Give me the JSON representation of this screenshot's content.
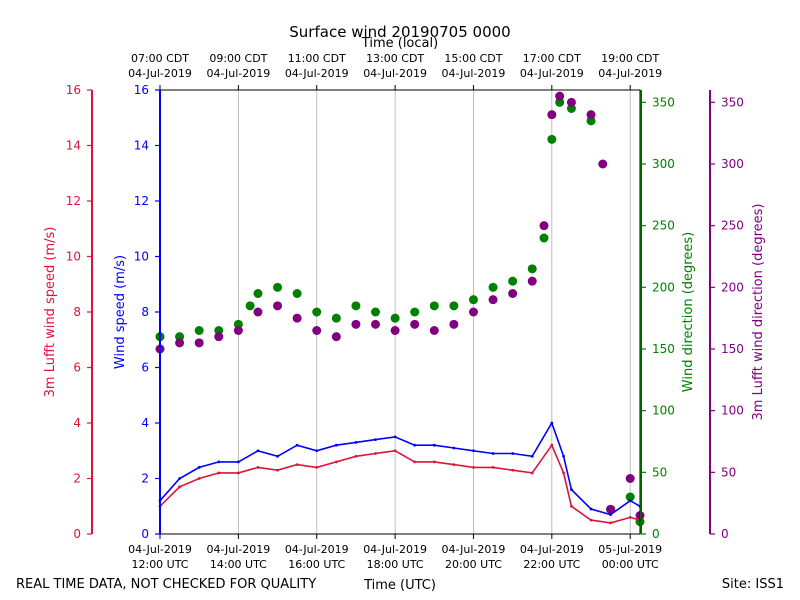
{
  "chart_data": {
    "type": "scatter+line",
    "title": "Surface wind 20190705 0000",
    "top_axis_label": "Time (local)",
    "bottom_axis_label": "Time (UTC)",
    "footer_left": "REAL TIME DATA, NOT CHECKED FOR QUALITY",
    "footer_right": "Site: ISS1",
    "x_range_hours_utc": [
      12,
      24.25
    ],
    "bottom_ticks": [
      {
        "hour": 12,
        "line1": "04-Jul-2019",
        "line2": "12:00 UTC"
      },
      {
        "hour": 14,
        "line1": "04-Jul-2019",
        "line2": "14:00 UTC"
      },
      {
        "hour": 16,
        "line1": "04-Jul-2019",
        "line2": "16:00 UTC"
      },
      {
        "hour": 18,
        "line1": "04-Jul-2019",
        "line2": "18:00 UTC"
      },
      {
        "hour": 20,
        "line1": "04-Jul-2019",
        "line2": "20:00 UTC"
      },
      {
        "hour": 22,
        "line1": "04-Jul-2019",
        "line2": "22:00 UTC"
      },
      {
        "hour": 24,
        "line1": "05-Jul-2019",
        "line2": "00:00 UTC"
      }
    ],
    "top_ticks": [
      {
        "hour": 12,
        "line1": "07:00 CDT",
        "line2": "04-Jul-2019"
      },
      {
        "hour": 14,
        "line1": "09:00 CDT",
        "line2": "04-Jul-2019"
      },
      {
        "hour": 16,
        "line1": "11:00 CDT",
        "line2": "04-Jul-2019"
      },
      {
        "hour": 18,
        "line1": "13:00 CDT",
        "line2": "04-Jul-2019"
      },
      {
        "hour": 20,
        "line1": "15:00 CDT",
        "line2": "04-Jul-2019"
      },
      {
        "hour": 22,
        "line1": "17:00 CDT",
        "line2": "04-Jul-2019"
      },
      {
        "hour": 24,
        "line1": "19:00 CDT",
        "line2": "04-Jul-2019"
      }
    ],
    "axes": {
      "lufft_speed": {
        "label": "3m Lufft wind speed (m/s)",
        "range": [
          0,
          16
        ],
        "ticks": [
          "0",
          "2",
          "4",
          "6",
          "8",
          "10",
          "12",
          "14",
          "16"
        ],
        "color": "#dc143c"
      },
      "speed": {
        "label": "Wind speed (m/s)",
        "range": [
          0,
          16
        ],
        "ticks": [
          "0",
          "2",
          "4",
          "6",
          "8",
          "10",
          "12",
          "14",
          "16"
        ],
        "color": "#0000ff"
      },
      "direction": {
        "label": "Wind direction (degrees)",
        "range": [
          0,
          360
        ],
        "ticks": [
          "0",
          "50",
          "100",
          "150",
          "200",
          "250",
          "300",
          "350"
        ],
        "color": "#008000"
      },
      "lufft_direction": {
        "label": "3m Lufft wind direction (degrees)",
        "range": [
          0,
          360
        ],
        "ticks": [
          "0",
          "50",
          "100",
          "150",
          "200",
          "250",
          "300",
          "350"
        ],
        "color": "#800080"
      }
    },
    "series": [
      {
        "name": "Wind speed",
        "axis": "speed",
        "style": "line",
        "color": "#0000ff",
        "points": [
          [
            12.0,
            1.2
          ],
          [
            12.5,
            2.0
          ],
          [
            13.0,
            2.4
          ],
          [
            13.5,
            2.6
          ],
          [
            14.0,
            2.6
          ],
          [
            14.5,
            3.0
          ],
          [
            15.0,
            2.8
          ],
          [
            15.5,
            3.2
          ],
          [
            16.0,
            3.0
          ],
          [
            16.5,
            3.2
          ],
          [
            17.0,
            3.3
          ],
          [
            17.5,
            3.4
          ],
          [
            18.0,
            3.5
          ],
          [
            18.5,
            3.2
          ],
          [
            19.0,
            3.2
          ],
          [
            19.5,
            3.1
          ],
          [
            20.0,
            3.0
          ],
          [
            20.5,
            2.9
          ],
          [
            21.0,
            2.9
          ],
          [
            21.5,
            2.8
          ],
          [
            22.0,
            4.0
          ],
          [
            22.3,
            2.8
          ],
          [
            22.5,
            1.6
          ],
          [
            23.0,
            0.9
          ],
          [
            23.5,
            0.7
          ],
          [
            24.0,
            1.2
          ],
          [
            24.25,
            1.0
          ]
        ]
      },
      {
        "name": "3m Lufft wind speed",
        "axis": "lufft_speed",
        "style": "line",
        "color": "#dc143c",
        "points": [
          [
            12.0,
            1.0
          ],
          [
            12.5,
            1.7
          ],
          [
            13.0,
            2.0
          ],
          [
            13.5,
            2.2
          ],
          [
            14.0,
            2.2
          ],
          [
            14.5,
            2.4
          ],
          [
            15.0,
            2.3
          ],
          [
            15.5,
            2.5
          ],
          [
            16.0,
            2.4
          ],
          [
            16.5,
            2.6
          ],
          [
            17.0,
            2.8
          ],
          [
            17.5,
            2.9
          ],
          [
            18.0,
            3.0
          ],
          [
            18.5,
            2.6
          ],
          [
            19.0,
            2.6
          ],
          [
            19.5,
            2.5
          ],
          [
            20.0,
            2.4
          ],
          [
            20.5,
            2.4
          ],
          [
            21.0,
            2.3
          ],
          [
            21.5,
            2.2
          ],
          [
            22.0,
            3.2
          ],
          [
            22.3,
            2.2
          ],
          [
            22.5,
            1.0
          ],
          [
            23.0,
            0.5
          ],
          [
            23.5,
            0.4
          ],
          [
            24.0,
            0.6
          ],
          [
            24.25,
            0.5
          ]
        ]
      },
      {
        "name": "Wind direction",
        "axis": "direction",
        "style": "scatter",
        "color": "#008000",
        "points": [
          [
            12.0,
            160
          ],
          [
            12.5,
            160
          ],
          [
            13.0,
            165
          ],
          [
            13.5,
            165
          ],
          [
            14.0,
            170
          ],
          [
            14.3,
            185
          ],
          [
            14.5,
            195
          ],
          [
            15.0,
            200
          ],
          [
            15.5,
            195
          ],
          [
            16.0,
            180
          ],
          [
            16.5,
            175
          ],
          [
            17.0,
            185
          ],
          [
            17.5,
            180
          ],
          [
            18.0,
            175
          ],
          [
            18.5,
            180
          ],
          [
            19.0,
            185
          ],
          [
            19.5,
            185
          ],
          [
            20.0,
            190
          ],
          [
            20.5,
            200
          ],
          [
            21.0,
            205
          ],
          [
            21.5,
            215
          ],
          [
            21.8,
            240
          ],
          [
            22.0,
            320
          ],
          [
            22.2,
            350
          ],
          [
            22.5,
            345
          ],
          [
            23.0,
            335
          ],
          [
            23.5,
            20
          ],
          [
            24.0,
            30
          ],
          [
            24.25,
            10
          ]
        ]
      },
      {
        "name": "3m Lufft wind direction",
        "axis": "lufft_direction",
        "style": "scatter",
        "color": "#800080",
        "points": [
          [
            12.0,
            150
          ],
          [
            12.5,
            155
          ],
          [
            13.0,
            155
          ],
          [
            13.5,
            160
          ],
          [
            14.0,
            165
          ],
          [
            14.5,
            180
          ],
          [
            15.0,
            185
          ],
          [
            15.5,
            175
          ],
          [
            16.0,
            165
          ],
          [
            16.5,
            160
          ],
          [
            17.0,
            170
          ],
          [
            17.5,
            170
          ],
          [
            18.0,
            165
          ],
          [
            18.5,
            170
          ],
          [
            19.0,
            165
          ],
          [
            19.5,
            170
          ],
          [
            20.0,
            180
          ],
          [
            20.5,
            190
          ],
          [
            21.0,
            195
          ],
          [
            21.5,
            205
          ],
          [
            21.8,
            250
          ],
          [
            22.0,
            340
          ],
          [
            22.2,
            355
          ],
          [
            22.5,
            350
          ],
          [
            23.0,
            340
          ],
          [
            23.3,
            300
          ],
          [
            23.5,
            20
          ],
          [
            24.0,
            45
          ],
          [
            24.25,
            15
          ]
        ]
      }
    ]
  }
}
